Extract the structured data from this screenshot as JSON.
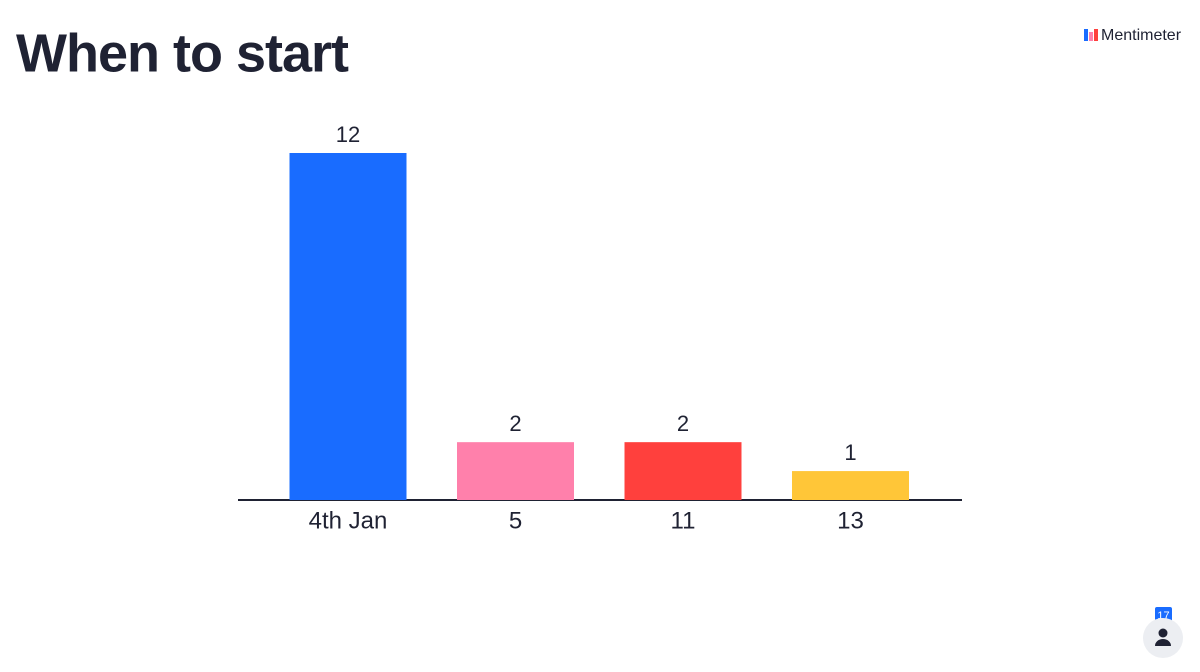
{
  "brand": "Mentimeter",
  "participants": 17,
  "chart_data": {
    "type": "bar",
    "title": "When to start",
    "categories": [
      "4th Jan",
      "5",
      "11",
      "13"
    ],
    "values": [
      12,
      2,
      2,
      1
    ],
    "colors": [
      "#196cff",
      "#ff80ab",
      "#ff403d",
      "#ffc638"
    ]
  }
}
